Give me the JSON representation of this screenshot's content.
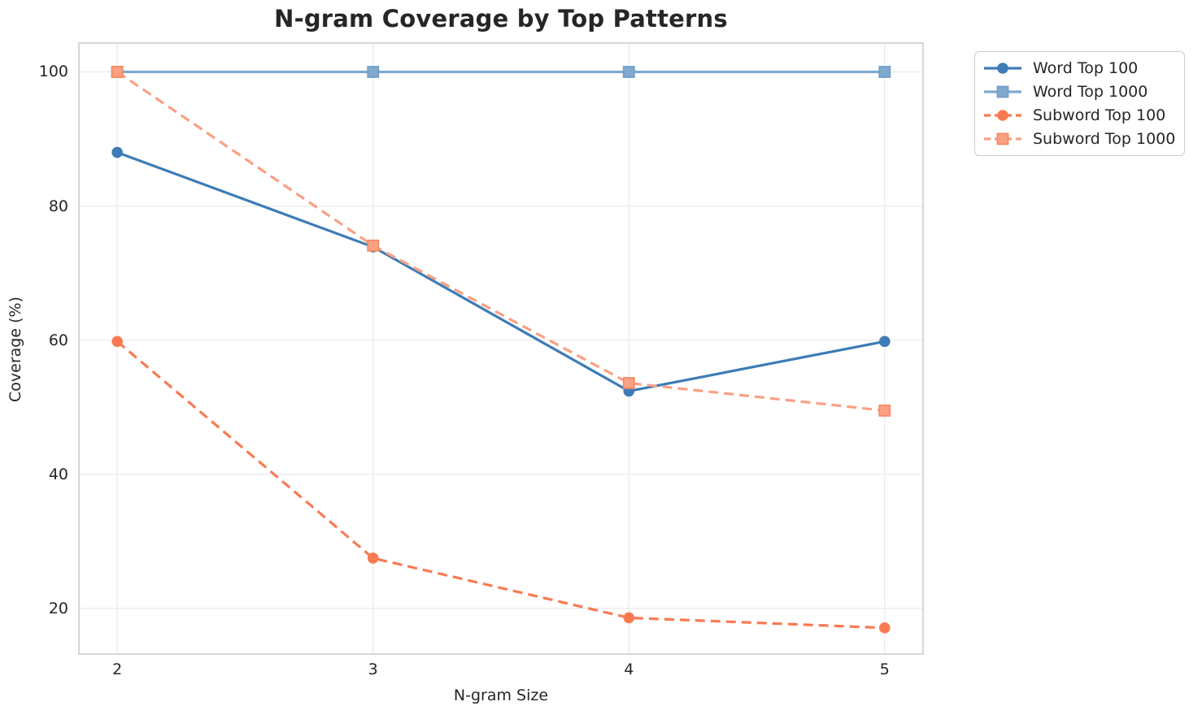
{
  "chart_data": {
    "type": "line",
    "title": "N-gram Coverage by Top Patterns",
    "xlabel": "N-gram Size",
    "ylabel": "Coverage (%)",
    "x": [
      2,
      3,
      4,
      5
    ],
    "x_tick_labels": [
      "2",
      "3",
      "4",
      "5"
    ],
    "y_ticks": [
      20,
      40,
      60,
      80,
      100
    ],
    "xlim": [
      1.85,
      5.15
    ],
    "ylim": [
      13.2,
      104.3
    ],
    "grid": true,
    "legend_position": "outside-upper-right",
    "grid_color": "#ececec",
    "spine_color": "#cdcdcd",
    "text_color": "#262626",
    "series": [
      {
        "name": "Word Top 100",
        "marker": "circle",
        "line_style": "solid",
        "color": "#3D7CB6",
        "values": [
          88.0,
          73.9,
          52.4,
          59.8
        ]
      },
      {
        "name": "Word Top 1000",
        "marker": "square",
        "line_style": "solid",
        "color": "#7FA9CE",
        "edge_color": "#6F9EC9",
        "values": [
          100.0,
          100.0,
          100.0,
          100.0
        ]
      },
      {
        "name": "Subword Top 100",
        "marker": "circle",
        "line_style": "dashed",
        "color": "#F97A52",
        "values": [
          59.8,
          27.5,
          18.6,
          17.1
        ]
      },
      {
        "name": "Subword Top 1000",
        "marker": "square",
        "line_style": "dashed",
        "color": "#FAA083",
        "edge_color": "#F8875E",
        "values": [
          100.0,
          74.1,
          53.6,
          49.5
        ]
      }
    ]
  }
}
